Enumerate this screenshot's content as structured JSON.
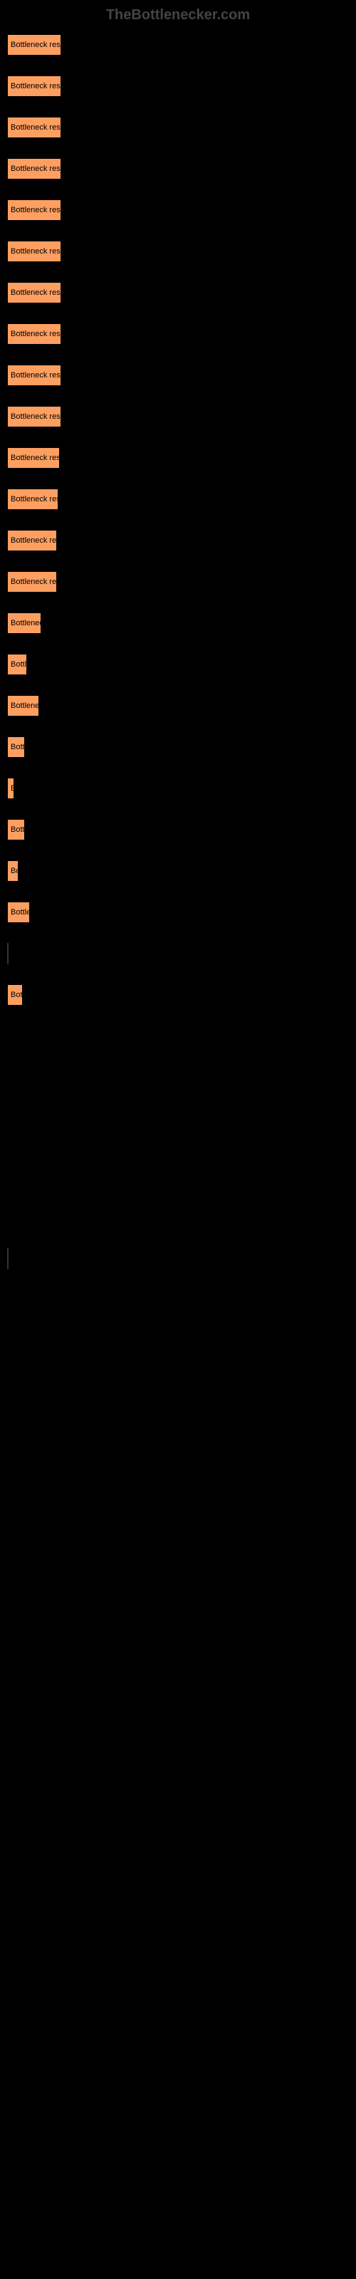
{
  "watermark": "TheBottlenecker.com",
  "chart": {
    "type": "bar",
    "bar_color": "#fd9f60",
    "bar_border": "#000000",
    "background_color": "#000000",
    "text_color": "#000000",
    "font_size": 11,
    "bar_label": "Bottleneck result",
    "bars": [
      {
        "width": 76,
        "label": "Bottleneck result"
      },
      {
        "width": 76,
        "label": "Bottleneck result"
      },
      {
        "width": 76,
        "label": "Bottleneck result"
      },
      {
        "width": 76,
        "label": "Bottleneck result"
      },
      {
        "width": 76,
        "label": "Bottleneck result"
      },
      {
        "width": 76,
        "label": "Bottleneck result"
      },
      {
        "width": 76,
        "label": "Bottleneck result"
      },
      {
        "width": 76,
        "label": "Bottleneck result"
      },
      {
        "width": 76,
        "label": "Bottleneck result"
      },
      {
        "width": 76,
        "label": "Bottleneck result"
      },
      {
        "width": 74,
        "label": "Bottleneck result"
      },
      {
        "width": 72,
        "label": "Bottleneck resu"
      },
      {
        "width": 70,
        "label": "Bottleneck resu"
      },
      {
        "width": 70,
        "label": "Bottleneck resu"
      },
      {
        "width": 48,
        "label": "Bottleneck"
      },
      {
        "width": 28,
        "label": "Bottle"
      },
      {
        "width": 45,
        "label": "Bottlenec"
      },
      {
        "width": 25,
        "label": "Bottl"
      },
      {
        "width": 10,
        "label": "B"
      },
      {
        "width": 25,
        "label": "Bottl"
      },
      {
        "width": 16,
        "label": "Bo"
      },
      {
        "width": 32,
        "label": "Bottlen"
      },
      {
        "width": 2,
        "label": "",
        "thin": true
      },
      {
        "width": 22,
        "label": "Bot"
      }
    ],
    "thin_bars_at_end": [
      {
        "position": 1710
      }
    ]
  }
}
